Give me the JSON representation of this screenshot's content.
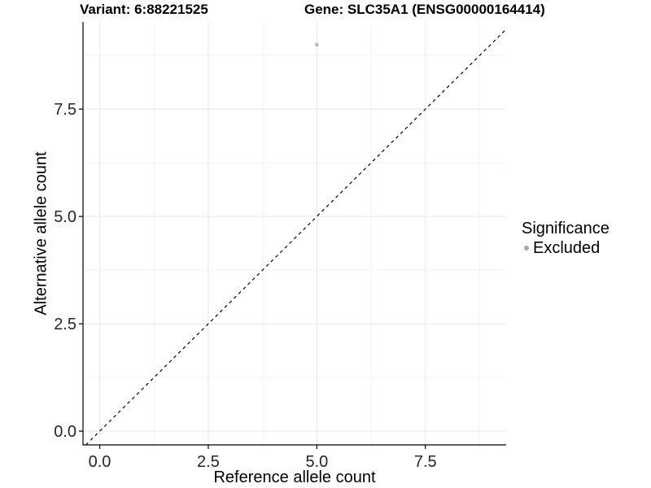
{
  "figure": {
    "titles": {
      "variant": "Variant: 6:88221525",
      "gene": "Gene: SLC35A1 (ENSG00000164414)"
    }
  },
  "chart_data": {
    "type": "scatter",
    "title": "Variant: 6:88221525 — Gene: SLC35A1 (ENSG00000164414)",
    "xlabel": "Reference allele count",
    "ylabel": "Alternative allele count",
    "xlim": [
      -0.385,
      9.36
    ],
    "ylim": [
      -0.32,
      9.53
    ],
    "x_ticks": {
      "values": [
        0,
        2.5,
        5,
        7.5
      ],
      "labels": [
        "0.0",
        "2.5",
        "5.0",
        "7.5"
      ]
    },
    "y_ticks": {
      "values": [
        0,
        2.5,
        5,
        7.5
      ],
      "labels": [
        "0.0",
        "2.5",
        "5.0",
        "7.5"
      ]
    },
    "minor_tick_values": [
      1.25,
      3.75,
      6.25,
      8.75
    ],
    "grid": "major+minor",
    "points": [
      {
        "x": 5,
        "y": 9,
        "series": "Excluded"
      }
    ],
    "identity_line": {
      "slope": 1,
      "intercept": 0,
      "style": "dashed",
      "color": "#000000"
    },
    "legend": {
      "position": "right",
      "title": "Significance",
      "entries": [
        {
          "label": "Excluded",
          "color": "#b0b0b0",
          "marker": "circle"
        }
      ]
    },
    "colors": {
      "point": "#bdbdbd",
      "legend_dot": "#a8a8a8",
      "grid_major": "#e7e7e7",
      "grid_minor": "#f3f3f3",
      "axis_line": "#000000",
      "tick_text": "#262626"
    }
  }
}
